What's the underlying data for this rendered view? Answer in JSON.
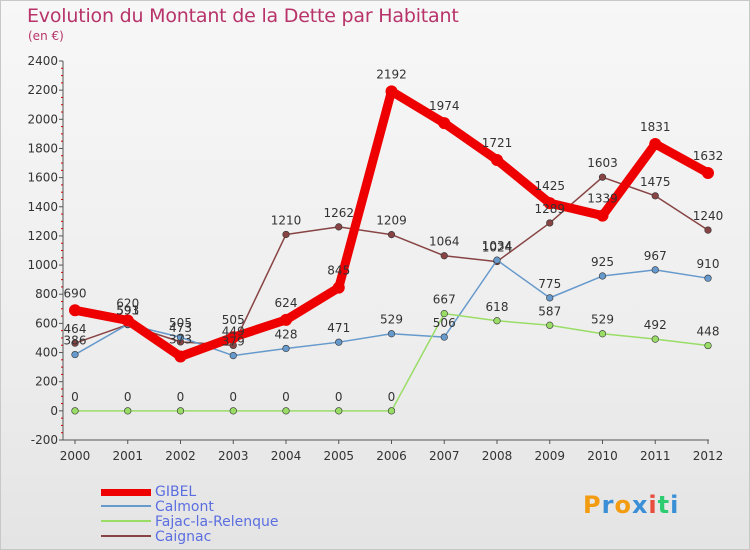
{
  "title": "Evolution du Montant de la Dette par Habitant",
  "subtitle": "(en €)",
  "brand": {
    "text": "Proxiti",
    "letters": [
      "P",
      "r",
      "o",
      "x",
      "i",
      "t",
      "i"
    ],
    "colors": [
      "#f39c12",
      "#3a8fd6",
      "#f39c12",
      "#3a8fd6",
      "#e74c3c",
      "#2ecc71",
      "#3a8fd6"
    ]
  },
  "colors": {
    "title": "#b7336a",
    "GIBEL": "#ee0000",
    "Calmont": "#6699cc",
    "Fajac-la-Relenque": "#99dd66",
    "Caignac": "#884444"
  },
  "chart_data": {
    "type": "line",
    "title": "Evolution du Montant de la Dette par Habitant",
    "subtitle": "(en €)",
    "xlabel": "",
    "ylabel": "",
    "ylim": [
      -200,
      2400
    ],
    "yticks": [
      "-200",
      "0",
      "200",
      "400",
      "600",
      "800",
      "1000",
      "1200",
      "1400",
      "1600",
      "1800",
      "2000",
      "2200",
      "2400"
    ],
    "ytick_values": [
      -200,
      0,
      200,
      400,
      600,
      800,
      1000,
      1200,
      1400,
      1600,
      1800,
      2000,
      2200,
      2400
    ],
    "categories": [
      "2000",
      "2001",
      "2002",
      "2003",
      "2004",
      "2005",
      "2006",
      "2007",
      "2008",
      "2009",
      "2010",
      "2011",
      "2012"
    ],
    "grid": false,
    "legend_position": "bottom-left",
    "series": [
      {
        "name": "GIBEL",
        "color": "#ee0000",
        "values": [
          690,
          620,
          373,
          505,
          624,
          845,
          2192,
          1974,
          1721,
          1425,
          1339,
          1831,
          1632
        ],
        "labels": [
          "690",
          "620",
          "373",
          "505",
          "624",
          "845",
          "2192",
          "1974",
          "1721",
          "1425",
          "1339",
          "1831",
          "1632"
        ]
      },
      {
        "name": "Calmont",
        "color": "#6699cc",
        "values": [
          386,
          593,
          505,
          379,
          428,
          471,
          529,
          506,
          1034,
          775,
          925,
          967,
          910
        ],
        "labels": [
          "386",
          "593",
          "505",
          "379",
          "428",
          "471",
          "529",
          "506",
          "1034",
          "775",
          "925",
          "967",
          "910"
        ]
      },
      {
        "name": "Fajac-la-Relenque",
        "color": "#99dd66",
        "values": [
          0,
          0,
          0,
          0,
          0,
          0,
          0,
          667,
          618,
          587,
          529,
          492,
          448
        ],
        "labels": [
          "0",
          "0",
          "0",
          "0",
          "0",
          "0",
          "0",
          "667",
          "618",
          "587",
          "529",
          "492",
          "448"
        ]
      },
      {
        "name": "Caignac",
        "color": "#884444",
        "values": [
          464,
          591,
          473,
          449,
          1210,
          1262,
          1209,
          1064,
          1024,
          1289,
          1603,
          1475,
          1240
        ],
        "labels": [
          "464",
          "591",
          "473",
          "449",
          "1210",
          "1262",
          "1209",
          "1064",
          "1024",
          "1289",
          "1603",
          "1475",
          "1240"
        ]
      }
    ]
  },
  "legend": [
    {
      "name": "GIBEL",
      "color": "#ee0000",
      "thick": true
    },
    {
      "name": "Calmont",
      "color": "#6699cc",
      "thick": false
    },
    {
      "name": "Fajac-la-Relenque",
      "color": "#99dd66",
      "thick": false
    },
    {
      "name": "Caignac",
      "color": "#884444",
      "thick": false
    }
  ]
}
